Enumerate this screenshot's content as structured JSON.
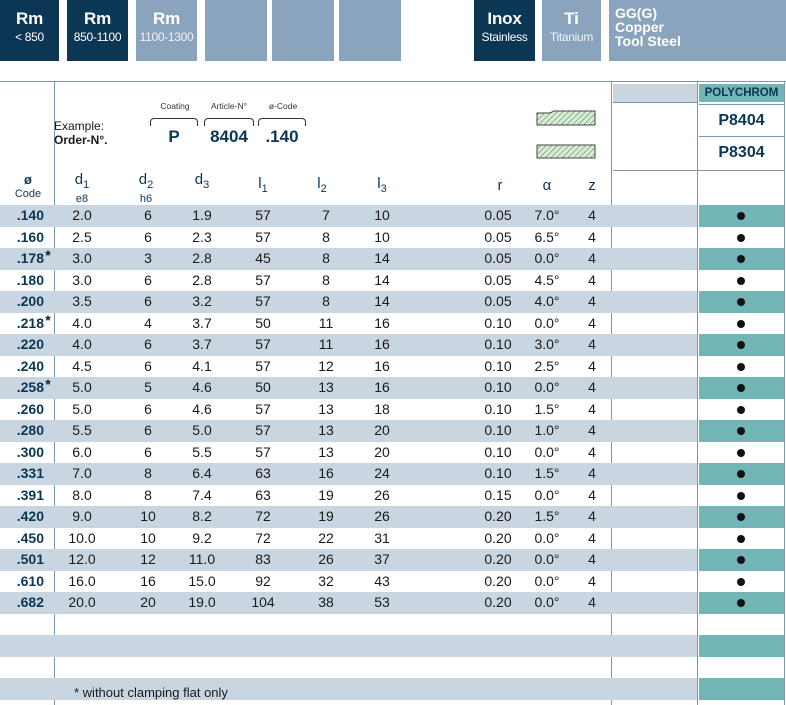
{
  "materials": [
    {
      "big": "Rm",
      "small": "< 850",
      "style": "dark"
    },
    {
      "big": "Rm",
      "small": "850-1100",
      "style": "dark"
    },
    {
      "big": "Rm",
      "small": "1100-1300",
      "style": "light"
    },
    {
      "big": "",
      "small": "",
      "style": "light"
    },
    {
      "big": "",
      "small": "",
      "style": "light"
    },
    {
      "big": "",
      "small": "",
      "style": "light"
    },
    {
      "big": "Inox",
      "small": "Stainless",
      "style": "dark"
    },
    {
      "big": "Ti",
      "small": "Titanium",
      "style": "light"
    },
    {
      "big": "GG(G)",
      "line2": "Copper",
      "line3": "Tool Steel",
      "style": "light"
    }
  ],
  "example": {
    "label_line1": "Example:",
    "label_line2": "Order-N°.",
    "coating_label": "Coating",
    "article_label": "Article-N°",
    "code_label": "ø-Code",
    "coating_value": "P",
    "article_value": "8404",
    "code_value": ".140"
  },
  "products": {
    "header": "POLYCHROM",
    "codes": [
      "P8404",
      "P8304"
    ],
    "code_icons": [
      "tool-long-flat-icon",
      "tool-straight-icon"
    ]
  },
  "columns": {
    "code": {
      "main": "ø",
      "sub": "Code"
    },
    "d1": {
      "main": "d",
      "idx": "1",
      "sub": "e8"
    },
    "d2": {
      "main": "d",
      "idx": "2",
      "sub": "h6"
    },
    "d3": {
      "main": "d",
      "idx": "3"
    },
    "l1": {
      "main": "l",
      "idx": "1"
    },
    "l2": {
      "main": "l",
      "idx": "2"
    },
    "l3": {
      "main": "l",
      "idx": "3"
    },
    "r": "r",
    "alpha": "α",
    "z": "z"
  },
  "rows": [
    {
      "code": ".140",
      "star": "",
      "d1": "2.0",
      "d2": "6",
      "d3": "1.9",
      "l1": "57",
      "l2": "7",
      "l3": "10",
      "r": "0.05",
      "alpha": "7.0°",
      "z": "4",
      "avail": true
    },
    {
      "code": ".160",
      "star": "",
      "d1": "2.5",
      "d2": "6",
      "d3": "2.3",
      "l1": "57",
      "l2": "8",
      "l3": "10",
      "r": "0.05",
      "alpha": "6.5°",
      "z": "4",
      "avail": true
    },
    {
      "code": ".178",
      "star": "*",
      "d1": "3.0",
      "d2": "3",
      "d3": "2.8",
      "l1": "45",
      "l2": "8",
      "l3": "14",
      "r": "0.05",
      "alpha": "0.0°",
      "z": "4",
      "avail": true
    },
    {
      "code": ".180",
      "star": "",
      "d1": "3.0",
      "d2": "6",
      "d3": "2.8",
      "l1": "57",
      "l2": "8",
      "l3": "14",
      "r": "0.05",
      "alpha": "4.5°",
      "z": "4",
      "avail": true
    },
    {
      "code": ".200",
      "star": "",
      "d1": "3.5",
      "d2": "6",
      "d3": "3.2",
      "l1": "57",
      "l2": "8",
      "l3": "14",
      "r": "0.05",
      "alpha": "4.0°",
      "z": "4",
      "avail": true
    },
    {
      "code": ".218",
      "star": "*",
      "d1": "4.0",
      "d2": "4",
      "d3": "3.7",
      "l1": "50",
      "l2": "11",
      "l3": "16",
      "r": "0.10",
      "alpha": "0.0°",
      "z": "4",
      "avail": true
    },
    {
      "code": ".220",
      "star": "",
      "d1": "4.0",
      "d2": "6",
      "d3": "3.7",
      "l1": "57",
      "l2": "11",
      "l3": "16",
      "r": "0.10",
      "alpha": "3.0°",
      "z": "4",
      "avail": true
    },
    {
      "code": ".240",
      "star": "",
      "d1": "4.5",
      "d2": "6",
      "d3": "4.1",
      "l1": "57",
      "l2": "12",
      "l3": "16",
      "r": "0.10",
      "alpha": "2.5°",
      "z": "4",
      "avail": true
    },
    {
      "code": ".258",
      "star": "*",
      "d1": "5.0",
      "d2": "5",
      "d3": "4.6",
      "l1": "50",
      "l2": "13",
      "l3": "16",
      "r": "0.10",
      "alpha": "0.0°",
      "z": "4",
      "avail": true
    },
    {
      "code": ".260",
      "star": "",
      "d1": "5.0",
      "d2": "6",
      "d3": "4.6",
      "l1": "57",
      "l2": "13",
      "l3": "18",
      "r": "0.10",
      "alpha": "1.5°",
      "z": "4",
      "avail": true
    },
    {
      "code": ".280",
      "star": "",
      "d1": "5.5",
      "d2": "6",
      "d3": "5.0",
      "l1": "57",
      "l2": "13",
      "l3": "20",
      "r": "0.10",
      "alpha": "1.0°",
      "z": "4",
      "avail": true
    },
    {
      "code": ".300",
      "star": "",
      "d1": "6.0",
      "d2": "6",
      "d3": "5.5",
      "l1": "57",
      "l2": "13",
      "l3": "20",
      "r": "0.10",
      "alpha": "0.0°",
      "z": "4",
      "avail": true
    },
    {
      "code": ".331",
      "star": "",
      "d1": "7.0",
      "d2": "8",
      "d3": "6.4",
      "l1": "63",
      "l2": "16",
      "l3": "24",
      "r": "0.10",
      "alpha": "1.5°",
      "z": "4",
      "avail": true
    },
    {
      "code": ".391",
      "star": "",
      "d1": "8.0",
      "d2": "8",
      "d3": "7.4",
      "l1": "63",
      "l2": "19",
      "l3": "26",
      "r": "0.15",
      "alpha": "0.0°",
      "z": "4",
      "avail": true
    },
    {
      "code": ".420",
      "star": "",
      "d1": "9.0",
      "d2": "10",
      "d3": "8.2",
      "l1": "72",
      "l2": "19",
      "l3": "26",
      "r": "0.20",
      "alpha": "1.5°",
      "z": "4",
      "avail": true
    },
    {
      "code": ".450",
      "star": "",
      "d1": "10.0",
      "d2": "10",
      "d3": "9.2",
      "l1": "72",
      "l2": "22",
      "l3": "31",
      "r": "0.20",
      "alpha": "0.0°",
      "z": "4",
      "avail": true
    },
    {
      "code": ".501",
      "star": "",
      "d1": "12.0",
      "d2": "12",
      "d3": "11.0",
      "l1": "83",
      "l2": "26",
      "l3": "37",
      "r": "0.20",
      "alpha": "0.0°",
      "z": "4",
      "avail": true
    },
    {
      "code": ".610",
      "star": "",
      "d1": "16.0",
      "d2": "16",
      "d3": "15.0",
      "l1": "92",
      "l2": "32",
      "l3": "43",
      "r": "0.20",
      "alpha": "0.0°",
      "z": "4",
      "avail": true
    },
    {
      "code": ".682",
      "star": "",
      "d1": "20.0",
      "d2": "20",
      "d3": "19.0",
      "l1": "104",
      "l2": "38",
      "l3": "53",
      "r": "0.20",
      "alpha": "0.0°",
      "z": "4",
      "avail": true
    }
  ],
  "footnote": "* without clamping flat only",
  "colors": {
    "dark_blue": "#0b3654",
    "light_blue": "#8aa4bd",
    "row_shade": "#c9d5e1",
    "teal": "#73b4b6"
  }
}
